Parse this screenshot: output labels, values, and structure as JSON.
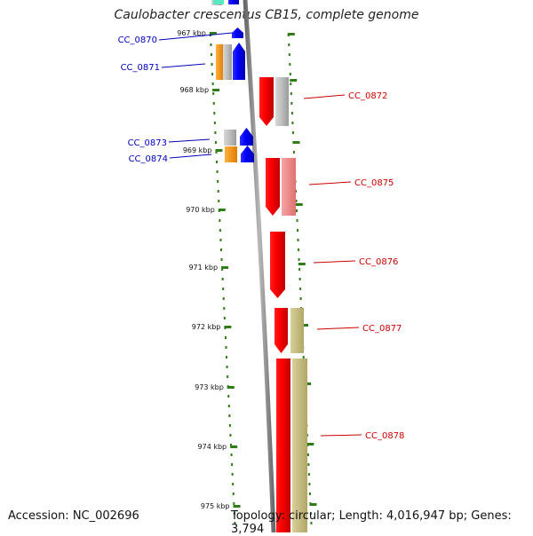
{
  "title": "Caulobacter crescentus CB15, complete genome",
  "accession": "Accession: NC_002696",
  "topology": "Topology: circular; Length: 4,016,947 bp; Genes: 3,794",
  "colors": {
    "backbone": "#8c8c8c",
    "tick": "#2e7d16",
    "forward_gene": "#0000ff",
    "reverse_gene": "#ff0000",
    "forward_label": "#0000bb",
    "reverse_label": "#cc0000",
    "orange": "#ff9a10",
    "gray_feature": "#bdbdbd",
    "pink_feature": "#f08a8a",
    "olive_feature": "#c8bf80",
    "teal_feature": "#56e8c0"
  },
  "ticks": [
    "967 kbp",
    "968 kbp",
    "969 kbp",
    "970 kbp",
    "971 kbp",
    "972 kbp",
    "973 kbp",
    "974 kbp",
    "975 kbp"
  ],
  "genes": [
    {
      "name": "CC_0870",
      "strand": "forward"
    },
    {
      "name": "CC_0871",
      "strand": "forward"
    },
    {
      "name": "CC_0872",
      "strand": "reverse"
    },
    {
      "name": "CC_0873",
      "strand": "forward"
    },
    {
      "name": "CC_0874",
      "strand": "forward"
    },
    {
      "name": "CC_0875",
      "strand": "reverse"
    },
    {
      "name": "CC_0876",
      "strand": "reverse"
    },
    {
      "name": "CC_0877",
      "strand": "reverse"
    },
    {
      "name": "CC_0878",
      "strand": "reverse"
    }
  ]
}
